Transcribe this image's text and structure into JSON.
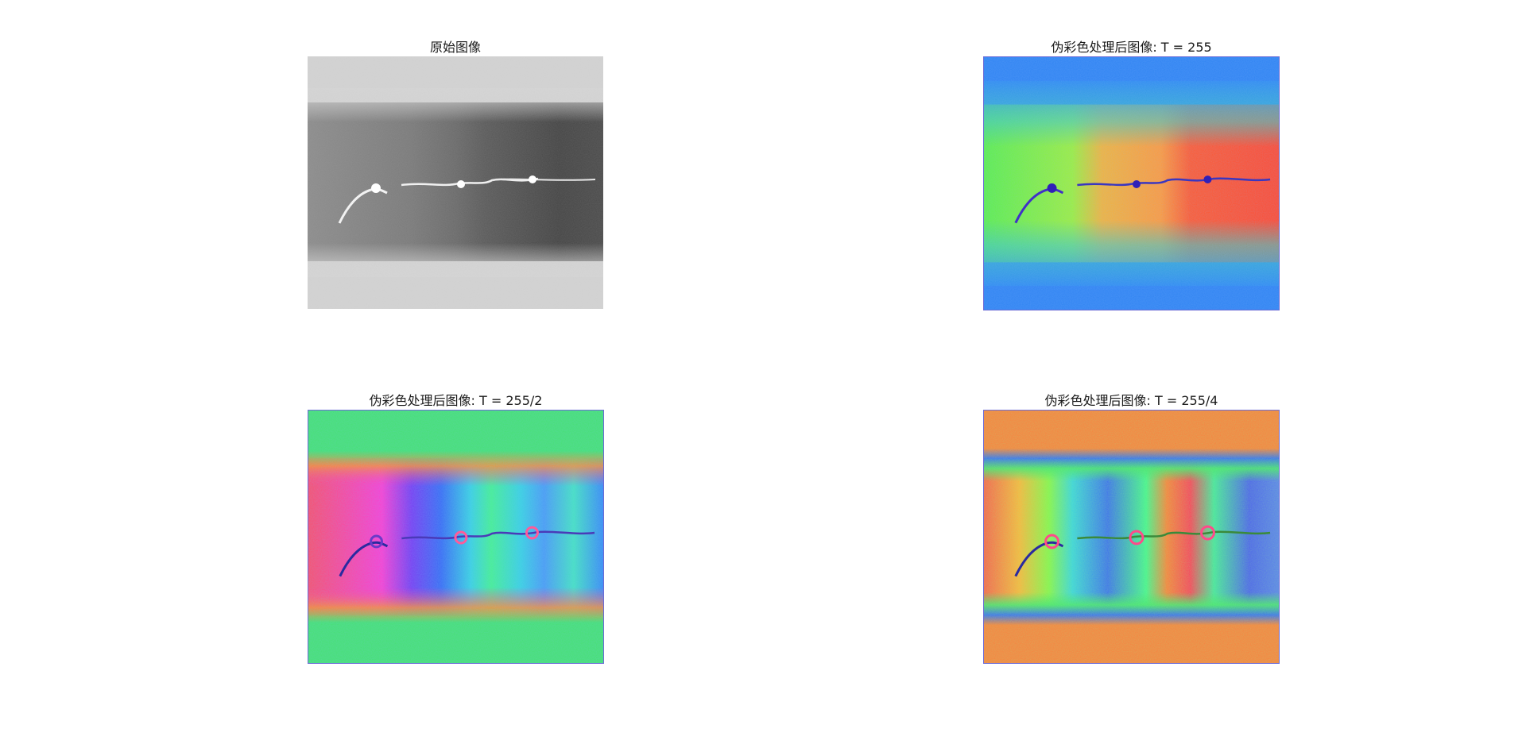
{
  "panels": [
    {
      "title": "原始图像",
      "colormap": "gray"
    },
    {
      "title": "伪彩色处理后图像: T = 255",
      "colormap": "hsv-1"
    },
    {
      "title": "伪彩色处理后图像: T = 255/2",
      "colormap": "hsv-2"
    },
    {
      "title": "伪彩色处理后图像: T = 255/4",
      "colormap": "hsv-4"
    }
  ]
}
